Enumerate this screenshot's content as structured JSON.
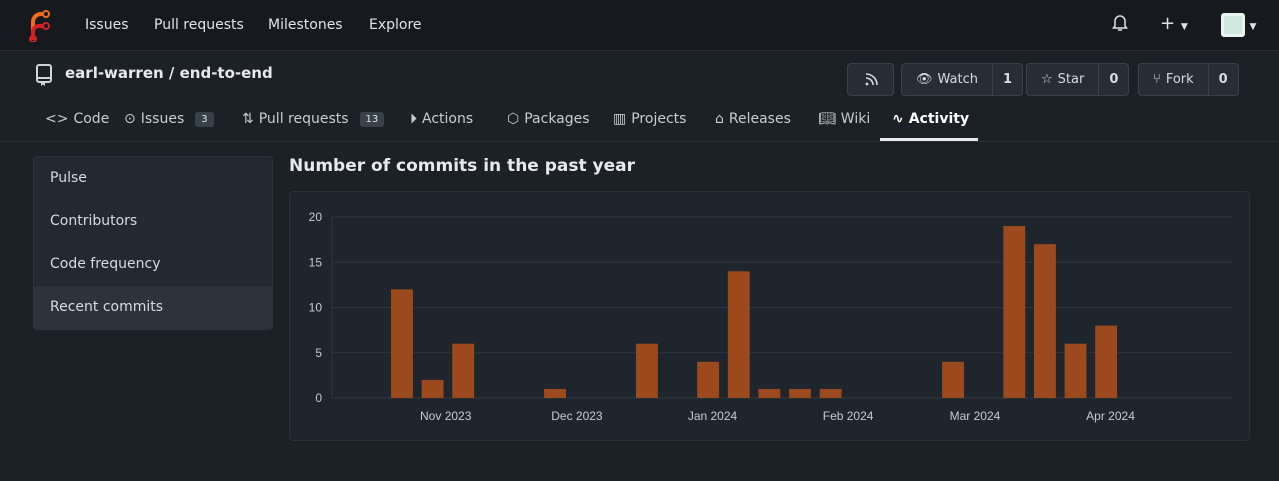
{
  "nav": {
    "items": [
      "Issues",
      "Pull requests",
      "Milestones",
      "Explore"
    ],
    "icons": [
      "forgejo-logo",
      "bell-icon",
      "plus-icon",
      "avatar"
    ]
  },
  "repo": {
    "title": "earl-warren / end-to-end",
    "watch_label": "Watch",
    "watch_count": "1",
    "star_label": "Star",
    "star_count": "0",
    "fork_label": "Fork",
    "fork_count": "0"
  },
  "tabs": [
    {
      "label": "Code"
    },
    {
      "label": "Issues",
      "badge": "3"
    },
    {
      "label": "Pull requests",
      "badge": "13"
    },
    {
      "label": "Actions"
    },
    {
      "label": "Packages"
    },
    {
      "label": "Projects"
    },
    {
      "label": "Releases"
    },
    {
      "label": "Wiki"
    },
    {
      "label": "Activity",
      "active": true
    }
  ],
  "sidebar": {
    "items": [
      "Pulse",
      "Contributors",
      "Code frequency",
      "Recent commits"
    ],
    "active": "Recent commits"
  },
  "heading": "Number of commits in the past year",
  "colors": {
    "bar": "#9c4a1d",
    "accent": "#e6e9ee"
  },
  "chart_data": {
    "type": "bar",
    "title": "",
    "xlabel": "",
    "ylabel": "",
    "ylim": [
      0,
      20
    ],
    "yticks": [
      0,
      5,
      10,
      15,
      20
    ],
    "xlim": [
      "2023-10-06",
      "2024-04-29"
    ],
    "xticks": [
      {
        "date": "2023-11-01",
        "label": "Nov 2023"
      },
      {
        "date": "2023-12-01",
        "label": "Dec 2023"
      },
      {
        "date": "2024-01-01",
        "label": "Jan 2024"
      },
      {
        "date": "2024-02-01",
        "label": "Feb 2024"
      },
      {
        "date": "2024-03-01",
        "label": "Mar 2024"
      },
      {
        "date": "2024-04-01",
        "label": "Apr 2024"
      }
    ],
    "grid": true,
    "x": [
      "2023-10-22",
      "2023-10-29",
      "2023-11-05",
      "2023-11-26",
      "2023-12-17",
      "2023-12-31",
      "2024-01-07",
      "2024-01-14",
      "2024-01-21",
      "2024-01-28",
      "2024-02-25",
      "2024-03-10",
      "2024-03-17",
      "2024-03-24",
      "2024-03-31"
    ],
    "values": [
      12,
      2,
      6,
      1,
      6,
      4,
      14,
      1,
      1,
      1,
      4,
      19,
      17,
      6,
      8
    ]
  }
}
